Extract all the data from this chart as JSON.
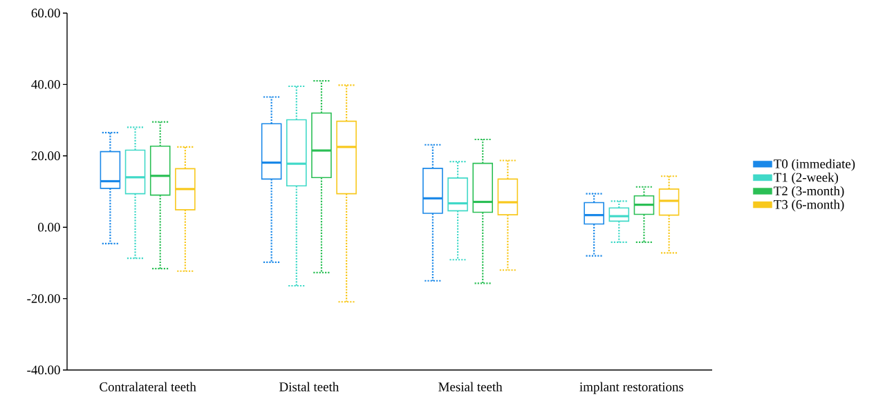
{
  "chart_data": {
    "type": "box",
    "categories": [
      "Contralateral teeth",
      "Distal teeth",
      "Mesial teeth",
      "implant restorations"
    ],
    "series": [
      {
        "name": "T0 (immediate)",
        "color": "#1a88e8",
        "boxes": [
          {
            "low": -4.6,
            "q1": 10.9,
            "median": 12.9,
            "q3": 21.2,
            "high": 26.5
          },
          {
            "low": -9.8,
            "q1": 13.5,
            "median": 18.1,
            "q3": 29.0,
            "high": 36.5
          },
          {
            "low": -15.0,
            "q1": 3.9,
            "median": 8.1,
            "q3": 16.5,
            "high": 23.1
          },
          {
            "low": -8.0,
            "q1": 0.9,
            "median": 3.4,
            "q3": 6.9,
            "high": 9.4
          }
        ]
      },
      {
        "name": "T1 (2-week)",
        "color": "#40d9c8",
        "boxes": [
          {
            "low": -8.7,
            "q1": 9.4,
            "median": 14.0,
            "q3": 21.6,
            "high": 28.0
          },
          {
            "low": -16.4,
            "q1": 11.6,
            "median": 17.8,
            "q3": 30.1,
            "high": 39.5
          },
          {
            "low": -9.1,
            "q1": 4.6,
            "median": 6.7,
            "q3": 13.8,
            "high": 18.4
          },
          {
            "low": -4.2,
            "q1": 1.7,
            "median": 3.1,
            "q3": 5.4,
            "high": 7.3
          }
        ]
      },
      {
        "name": "T2 (3-month)",
        "color": "#2bbf55",
        "boxes": [
          {
            "low": -11.6,
            "q1": 9.0,
            "median": 14.4,
            "q3": 22.7,
            "high": 29.5
          },
          {
            "low": -12.7,
            "q1": 13.9,
            "median": 21.5,
            "q3": 32.0,
            "high": 41.0
          },
          {
            "low": -15.7,
            "q1": 4.2,
            "median": 7.1,
            "q3": 17.9,
            "high": 24.6
          },
          {
            "low": -4.2,
            "q1": 3.6,
            "median": 6.3,
            "q3": 8.8,
            "high": 11.3
          }
        ]
      },
      {
        "name": "T3 (6-month)",
        "color": "#f8c81c",
        "boxes": [
          {
            "low": -12.3,
            "q1": 4.9,
            "median": 10.7,
            "q3": 16.4,
            "high": 22.5
          },
          {
            "low": -20.9,
            "q1": 9.4,
            "median": 22.5,
            "q3": 29.7,
            "high": 39.8
          },
          {
            "low": -12.0,
            "q1": 3.5,
            "median": 7.0,
            "q3": 13.5,
            "high": 18.7
          },
          {
            "low": -7.2,
            "q1": 3.4,
            "median": 7.4,
            "q3": 10.7,
            "high": 14.3
          }
        ]
      }
    ],
    "ylim": [
      -40,
      60
    ],
    "yticks": [
      {
        "value": -40,
        "label": "-40.00"
      },
      {
        "value": -20,
        "label": "-20.00"
      },
      {
        "value": 0,
        "label": "0.00"
      },
      {
        "value": 20,
        "label": "20.00"
      },
      {
        "value": 40,
        "label": "40.00"
      },
      {
        "value": 60,
        "label": "60.00"
      }
    ],
    "legend": "right",
    "line_style": "dotted"
  }
}
